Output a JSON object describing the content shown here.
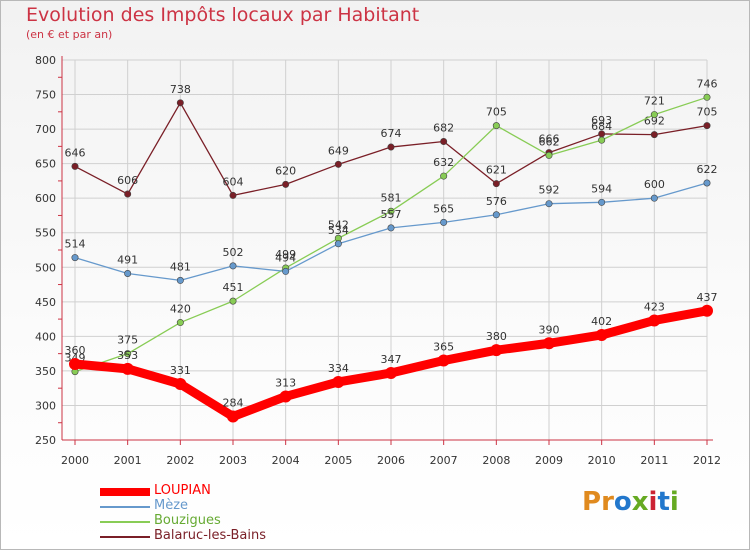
{
  "header": {
    "title": "Evolution des Impôts locaux par Habitant",
    "subtitle": "(en € et par an)"
  },
  "logo": {
    "text": "Proxiti",
    "colors": [
      "#e08a1e",
      "#e08a1e",
      "#2277cc",
      "#66aa22",
      "#cc2233",
      "#2277cc",
      "#66aa22"
    ]
  },
  "colors": {
    "title": "#cc3344",
    "axis": "#cc3344",
    "grid": "#d0d0d0"
  },
  "chart_data": {
    "type": "line",
    "title": "Evolution des Impôts locaux par Habitant",
    "ylabel": "(en € et par an)",
    "xlabel": "",
    "categories": [
      "2000",
      "2001",
      "2002",
      "2003",
      "2004",
      "2005",
      "2006",
      "2007",
      "2008",
      "2009",
      "2010",
      "2011",
      "2012"
    ],
    "yticks": [
      250,
      300,
      350,
      400,
      450,
      500,
      550,
      600,
      650,
      700,
      750,
      800
    ],
    "ylim": [
      250,
      800
    ],
    "grid": true,
    "legend_position": "bottom-left",
    "series": [
      {
        "name": "Balaruc-les-Bains",
        "color": "#7a1f27",
        "values": [
          646,
          606,
          738,
          604,
          620,
          649,
          674,
          682,
          621,
          666,
          693,
          692,
          705
        ]
      },
      {
        "name": "Bouzigues",
        "color": "#88cc55",
        "values": [
          349,
          375,
          420,
          451,
          499,
          542,
          581,
          632,
          705,
          662,
          684,
          721,
          746
        ]
      },
      {
        "name": "Mèze",
        "color": "#6699cc",
        "values": [
          514,
          491,
          481,
          502,
          494,
          534,
          557,
          565,
          576,
          592,
          594,
          600,
          622
        ]
      },
      {
        "name": "LOUPIAN",
        "color": "#ff0000",
        "values": [
          360,
          353,
          331,
          284,
          313,
          334,
          347,
          365,
          380,
          390,
          402,
          423,
          437
        ]
      }
    ],
    "legend_order": [
      "LOUPIAN",
      "Mèze",
      "Bouzigues",
      "Balaruc-les-Bains"
    ]
  }
}
